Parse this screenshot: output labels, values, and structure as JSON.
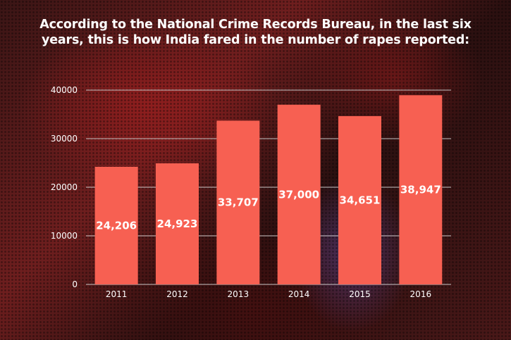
{
  "headline_line1": "According to the National Crime Records Bureau, in the last six",
  "headline_line2": "years, this is how India fared in the number of rapes reported:",
  "colors": {
    "bar": "#f76052",
    "grid": "#d9d9d9",
    "text": "#ffffff"
  },
  "chart_data": {
    "type": "bar",
    "title": "According to the National Crime Records Bureau, in the last six years, this is how India fared in the number of rapes reported:",
    "categories": [
      "2011",
      "2012",
      "2013",
      "2014",
      "2015",
      "2016"
    ],
    "values": [
      24206,
      24923,
      33707,
      37000,
      34651,
      38947
    ],
    "data_labels": [
      "24,206",
      "24,923",
      "33,707",
      "37,000",
      "34,651",
      "38,947"
    ],
    "ylim": [
      0,
      40000
    ],
    "yticks": [
      "0",
      "10000",
      "20000",
      "30000",
      "40000"
    ],
    "ytick_values": [
      0,
      10000,
      20000,
      30000,
      40000
    ],
    "grid": true,
    "legend": "none",
    "xlabel": "",
    "ylabel": ""
  }
}
